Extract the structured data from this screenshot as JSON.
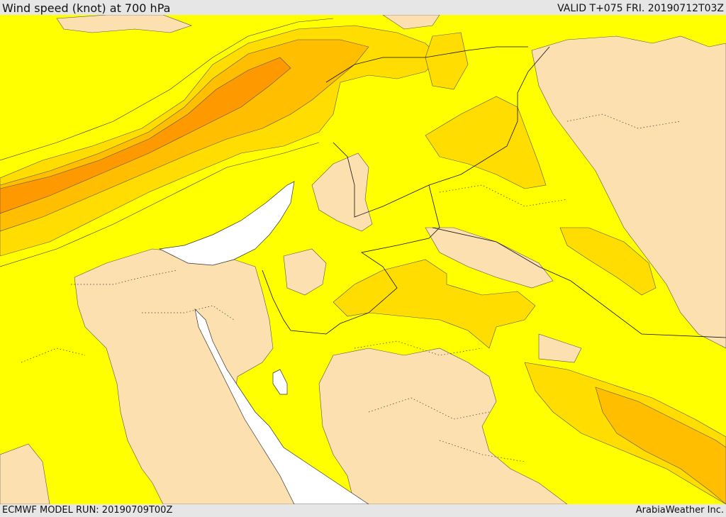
{
  "header": {
    "title": "Wind speed (knot) at 700 hPa",
    "valid": "VALID T+075 FRI. 20190712T03Z"
  },
  "footer": {
    "model_run": "ECMWF MODEL RUN: 20190709T00Z",
    "credit": "ArabiaWeather Inc."
  },
  "map": {
    "field": "wind speed",
    "level": "700 hPa",
    "unit": "knot",
    "colors": {
      "sea": "#ffffff",
      "band_lowest": "#fde0b0",
      "band_low": "#ffff00",
      "band_mid": "#ffdd00",
      "band_high": "#ffbf00",
      "band_highest": "#ff9900",
      "contour": "#333333",
      "border": "#111111"
    }
  }
}
